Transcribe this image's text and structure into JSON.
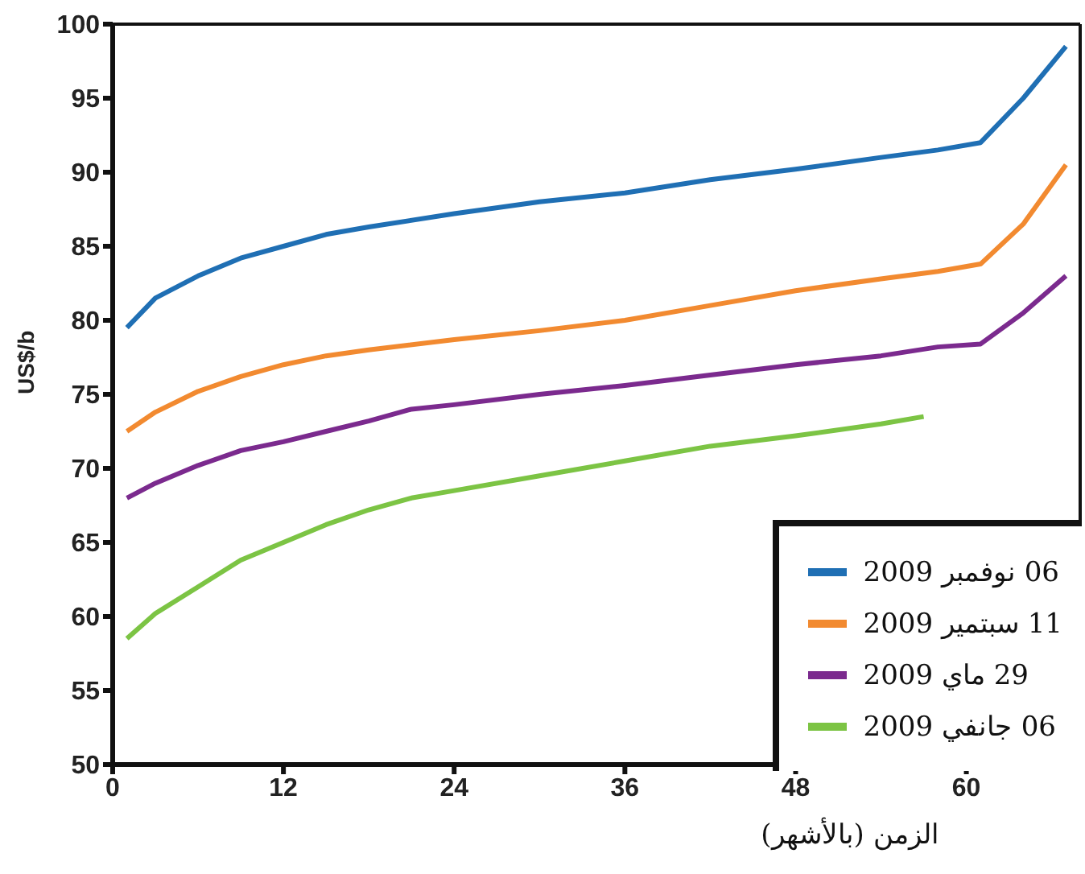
{
  "chart_data": {
    "type": "line",
    "ylabel": "US$/b",
    "xlabel": "الزمن (بالأشهر)",
    "xlim": [
      0,
      68
    ],
    "xticks": [
      0,
      12,
      24,
      36,
      48,
      60
    ],
    "ylim": [
      50,
      100
    ],
    "yticks": [
      50,
      55,
      60,
      65,
      70,
      75,
      80,
      85,
      90,
      95,
      100
    ],
    "grid": false,
    "legend": "bottom right",
    "marker": "none",
    "line_style": "solid",
    "series": [
      {
        "name": "06 نوفمبر 2009",
        "color": "#1f6fb4",
        "x": [
          1,
          3,
          6,
          9,
          12,
          15,
          18,
          24,
          30,
          36,
          42,
          48,
          54,
          58,
          61,
          64,
          67
        ],
        "values": [
          79.5,
          81.5,
          83,
          84.2,
          85,
          85.8,
          86.3,
          87.2,
          88,
          88.6,
          89.5,
          90.2,
          91,
          91.5,
          92,
          95,
          98.5
        ]
      },
      {
        "name": "11 سبتمير 2009",
        "color": "#f28a30",
        "x": [
          1,
          3,
          6,
          9,
          12,
          15,
          18,
          24,
          30,
          36,
          42,
          48,
          54,
          58,
          61,
          64,
          67
        ],
        "values": [
          72.5,
          73.8,
          75.2,
          76.2,
          77,
          77.6,
          78,
          78.7,
          79.3,
          80,
          81,
          82,
          82.8,
          83.3,
          83.8,
          86.5,
          90.5
        ]
      },
      {
        "name": "29 ماي 2009",
        "color": "#7b2a8e",
        "x": [
          1,
          3,
          6,
          9,
          12,
          15,
          18,
          21,
          24,
          30,
          36,
          42,
          48,
          54,
          58,
          61,
          64,
          67
        ],
        "values": [
          68,
          69,
          70.2,
          71.2,
          71.8,
          72.5,
          73.2,
          74,
          74.3,
          75,
          75.6,
          76.3,
          77,
          77.6,
          78.2,
          78.4,
          80.5,
          83
        ]
      },
      {
        "name": "06 جانفي 2009",
        "color": "#7cc444",
        "x": [
          1,
          3,
          6,
          9,
          12,
          15,
          18,
          21,
          24,
          30,
          36,
          42,
          48,
          54,
          57
        ],
        "values": [
          58.5,
          60.2,
          62,
          63.8,
          65,
          66.2,
          67.2,
          68,
          68.5,
          69.5,
          70.5,
          71.5,
          72.2,
          73,
          73.5
        ]
      }
    ]
  }
}
